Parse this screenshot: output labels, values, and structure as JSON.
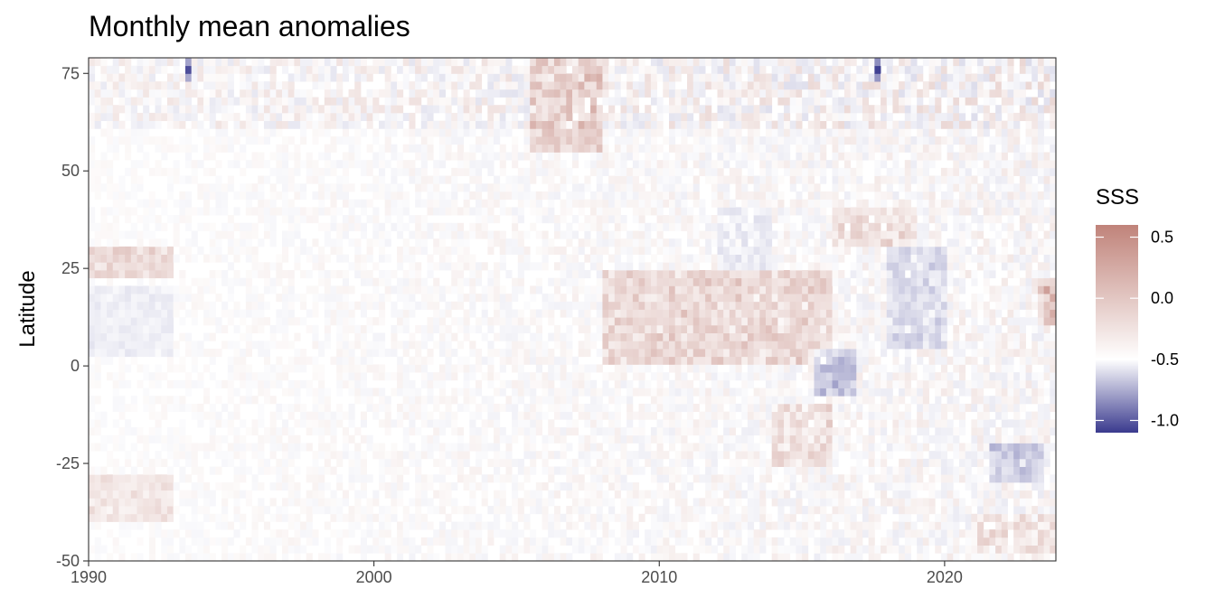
{
  "chart_data": {
    "type": "heatmap",
    "title": "Monthly mean anomalies",
    "xlabel": "",
    "ylabel": "Latitude",
    "xlim": [
      1990,
      2023.9
    ],
    "ylim": [
      -50,
      79
    ],
    "x_ticks": [
      1990,
      2000,
      2010,
      2020
    ],
    "y_ticks": [
      -50,
      -25,
      0,
      25,
      50,
      75
    ],
    "grid": false,
    "legend": {
      "title": "SSS",
      "position": "right",
      "ticks": [
        0.5,
        0.0,
        -0.5,
        -1.0
      ],
      "tick_labels": [
        "0.5",
        "0.0",
        "-0.5",
        "-1.0"
      ],
      "limits": [
        -1.1,
        0.6
      ],
      "colors": {
        "low": "#3a3a8e",
        "mid": "#ffffff",
        "high": "#c0837a"
      }
    },
    "features": [
      {
        "x_from": 1990,
        "x_to": 1993,
        "y_from": 22,
        "y_to": 30,
        "value": 0.2
      },
      {
        "x_from": 1990,
        "x_to": 1993,
        "y_from": -40,
        "y_to": -28,
        "value": 0.13
      },
      {
        "x_from": 1990,
        "x_to": 1993,
        "y_from": 2,
        "y_to": 20,
        "value": -0.1
      },
      {
        "x_from": 2005.5,
        "x_to": 2008,
        "y_from": 55,
        "y_to": 79,
        "value": 0.22
      },
      {
        "x_from": 2008,
        "x_to": 2016,
        "y_from": 0,
        "y_to": 25,
        "value": 0.2
      },
      {
        "x_from": 2015.5,
        "x_to": 2017,
        "y_from": -8,
        "y_to": 5,
        "value": -0.35
      },
      {
        "x_from": 2018,
        "x_to": 2020,
        "y_from": 5,
        "y_to": 30,
        "value": -0.2
      },
      {
        "x_from": 2021.5,
        "x_to": 2023.5,
        "y_from": -30,
        "y_to": -20,
        "value": -0.3
      },
      {
        "x_from": 2016,
        "x_to": 2019,
        "y_from": 30,
        "y_to": 40,
        "value": 0.15
      },
      {
        "x_from": 2023.2,
        "x_to": 2023.9,
        "y_from": 10,
        "y_to": 22,
        "value": 0.3
      },
      {
        "x_from": 1993.3,
        "x_to": 1993.6,
        "y_from": 72,
        "y_to": 79,
        "value": -0.8
      },
      {
        "x_from": 2017.5,
        "x_to": 2017.8,
        "y_from": 72,
        "y_to": 79,
        "value": -0.9
      },
      {
        "x_from": 2012,
        "x_to": 2014,
        "y_from": 25,
        "y_to": 40,
        "value": -0.1
      },
      {
        "x_from": 2014,
        "x_to": 2016,
        "y_from": -25,
        "y_to": -10,
        "value": 0.15
      },
      {
        "x_from": 2021,
        "x_to": 2023.9,
        "y_from": -48,
        "y_to": -38,
        "value": 0.12
      }
    ]
  }
}
